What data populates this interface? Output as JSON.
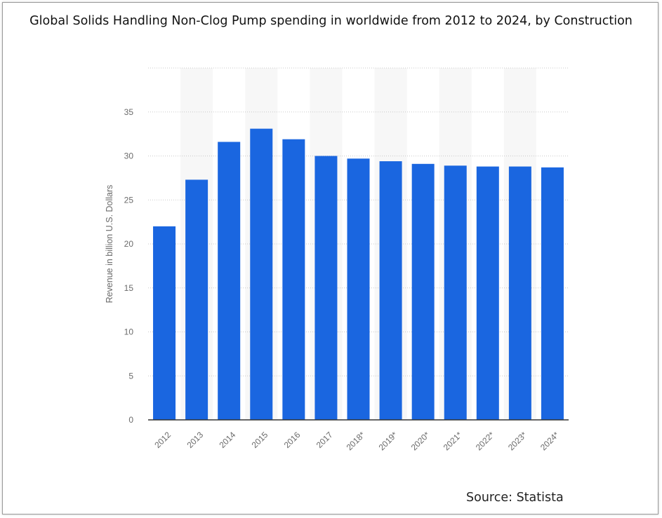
{
  "title": "Global Solids Handling Non-Clog Pump spending in worldwide from 2012 to 2024, by Construction",
  "source": "Source: Statista",
  "chart_data": {
    "type": "bar",
    "categories": [
      "2012",
      "2013",
      "2014",
      "2015",
      "2016",
      "2017",
      "2018*",
      "2019*",
      "2020*",
      "2021*",
      "2022*",
      "2023*",
      "2024*"
    ],
    "values": [
      22.0,
      27.3,
      31.6,
      33.1,
      31.9,
      30.0,
      29.7,
      29.4,
      29.1,
      28.9,
      28.8,
      28.8,
      28.7
    ],
    "ylabel": "Revenue in billion U.S. Dollars",
    "xlabel": "",
    "ylim": [
      0,
      40
    ],
    "yticks": [
      0,
      5,
      10,
      15,
      20,
      25,
      30,
      35
    ],
    "bar_color": "#1a66e0",
    "grid": true,
    "legend": "none"
  }
}
